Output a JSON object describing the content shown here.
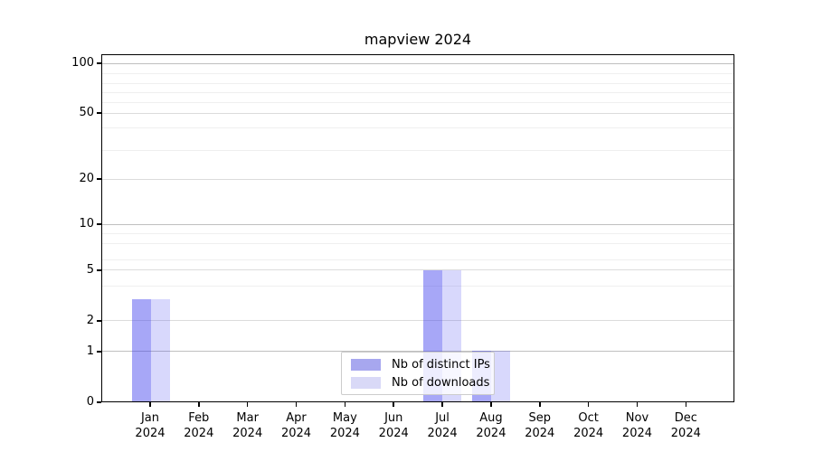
{
  "title": "mapview 2024",
  "legend": {
    "items": [
      {
        "label": "Nb of distinct IPs",
        "color": "#a7a7ef"
      },
      {
        "label": "Nb of downloads",
        "color": "#d9d9f7"
      }
    ]
  },
  "chart_data": {
    "type": "bar",
    "title": "mapview 2024",
    "categories": [
      "Jan 2024",
      "Feb 2024",
      "Mar 2024",
      "Apr 2024",
      "May 2024",
      "Jun 2024",
      "Jul 2024",
      "Aug 2024",
      "Sep 2024",
      "Oct 2024",
      "Nov 2024",
      "Dec 2024"
    ],
    "series": [
      {
        "name": "Nb of distinct IPs",
        "values": [
          3,
          0,
          0,
          0,
          0,
          0,
          5,
          1,
          0,
          0,
          0,
          0
        ]
      },
      {
        "name": "Nb of downloads",
        "values": [
          3,
          0,
          0,
          0,
          0,
          0,
          5,
          1,
          0,
          0,
          0,
          0
        ]
      }
    ],
    "xlabel": "",
    "ylabel": "",
    "yscale": "log-like (symlog: linear 0-1, compressed log above)",
    "y_tick_values": [
      0,
      1,
      2,
      5,
      10,
      20,
      50,
      100
    ],
    "ylim": [
      0,
      130
    ],
    "grid": "horizontal major + minor",
    "legend_position": "inside lower-center",
    "bar_colors": {
      "distinct_ips": "rgba(60,60,238,0.45)",
      "downloads": "rgba(60,60,238,0.20)"
    }
  },
  "render": {
    "month_short": [
      "Jan",
      "Feb",
      "Mar",
      "Apr",
      "May",
      "Jun",
      "Jul",
      "Aug",
      "Sep",
      "Oct",
      "Nov",
      "Dec"
    ],
    "year": "2024",
    "x_first_pct": 7.71,
    "x_step_pct": 7.693,
    "bar_width_pct": 3.0,
    "y_ticks": [
      {
        "label": "100",
        "pct": 2.6,
        "style": "major"
      },
      {
        "label": "50",
        "pct": 16.88,
        "style": "mid"
      },
      {
        "label": "20",
        "pct": 35.84,
        "style": "mid"
      },
      {
        "label": "10",
        "pct": 48.83,
        "style": "major"
      },
      {
        "label": "5",
        "pct": 62.08,
        "style": "mid"
      },
      {
        "label": "2",
        "pct": 76.62,
        "style": "mid"
      },
      {
        "label": "1",
        "pct": 85.45,
        "style": "major"
      },
      {
        "label": "0",
        "pct": 100,
        "style": "none"
      }
    ],
    "y_minor_pct": [
      5.45,
      8.31,
      10.91,
      13.77,
      21.04,
      27.53,
      51.69,
      54.55,
      59.22,
      66.75
    ],
    "value_top_pct": {
      "1": 85.45,
      "3": 70.39,
      "5": 62.08
    }
  }
}
